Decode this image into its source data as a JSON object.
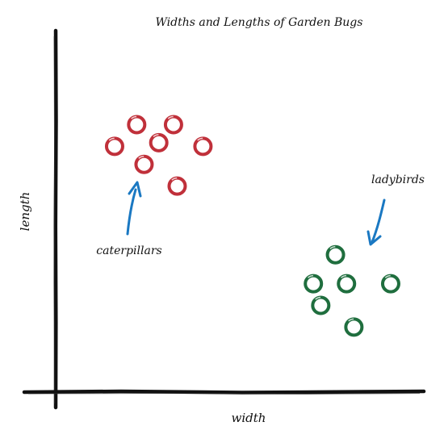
{
  "chart_data": {
    "type": "scatter",
    "title": "Widths and Lengths of Garden Bugs",
    "xlabel": "width",
    "ylabel": "length",
    "xlim": [
      0,
      100
    ],
    "ylim": [
      0,
      100
    ],
    "grid": false,
    "legend": "none",
    "series": [
      {
        "name": "caterpillars",
        "color": "#c0303a",
        "points": [
          {
            "x": 22,
            "y": 74
          },
          {
            "x": 32,
            "y": 74
          },
          {
            "x": 16,
            "y": 68
          },
          {
            "x": 28,
            "y": 69
          },
          {
            "x": 40,
            "y": 68
          },
          {
            "x": 24,
            "y": 63
          },
          {
            "x": 33,
            "y": 57
          }
        ]
      },
      {
        "name": "ladybirds",
        "color": "#1f6e3e",
        "points": [
          {
            "x": 76,
            "y": 38
          },
          {
            "x": 70,
            "y": 30
          },
          {
            "x": 79,
            "y": 30
          },
          {
            "x": 91,
            "y": 30
          },
          {
            "x": 72,
            "y": 24
          },
          {
            "x": 81,
            "y": 18
          }
        ]
      }
    ],
    "annotations": [
      {
        "text": "caterpillars",
        "arrow_color": "#1a78c2"
      },
      {
        "text": "ladybirds",
        "arrow_color": "#1a78c2"
      }
    ],
    "axis_color": "#111111"
  }
}
